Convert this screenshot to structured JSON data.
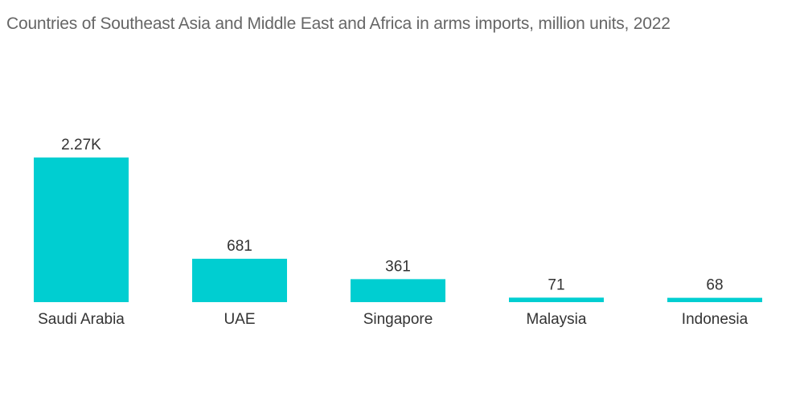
{
  "chart_data": {
    "type": "bar",
    "title": "Countries of Southeast Asia and Middle East and Africa in arms imports, million units, 2022",
    "categories": [
      "Saudi Arabia",
      "UAE",
      "Singapore",
      "Malaysia",
      "Indonesia"
    ],
    "values": [
      2270,
      681,
      361,
      71,
      68
    ],
    "value_labels": [
      "2.27K",
      "681",
      "361",
      "71",
      "68"
    ],
    "xlabel": "",
    "ylabel": "",
    "ylim": [
      0,
      2270
    ],
    "grid": false,
    "legend": "none",
    "bar_color": "#00CED1"
  }
}
